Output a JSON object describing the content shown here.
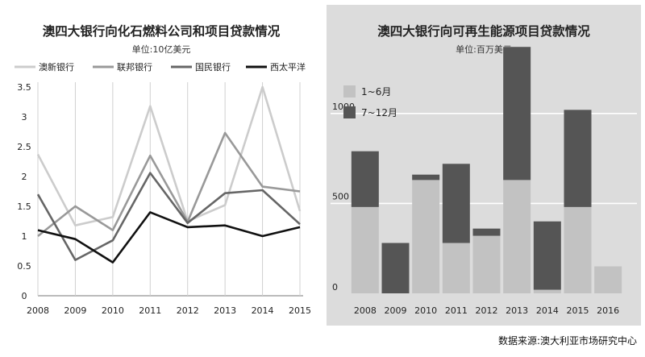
{
  "source_note": "数据来源:澳大利亚市场研究中心",
  "chart_data": [
    {
      "type": "line",
      "title": "澳四大银行向化石燃料公司和项目贷款情况",
      "subtitle": "单位:10亿美元",
      "x": [
        2008,
        2009,
        2010,
        2011,
        2012,
        2013,
        2014,
        2015
      ],
      "ylim": [
        0,
        3.5
      ],
      "yticks": [
        0,
        0.5,
        1,
        1.5,
        2,
        2.5,
        3,
        3.5
      ],
      "grid": false,
      "legend_position": "top",
      "series": [
        {
          "name": "澳新银行",
          "color": "#cccccc",
          "values": [
            2.37,
            1.18,
            1.32,
            3.18,
            1.25,
            1.52,
            3.5,
            1.42
          ]
        },
        {
          "name": "联邦银行",
          "color": "#999999",
          "values": [
            1.0,
            1.5,
            1.1,
            2.35,
            1.24,
            2.73,
            1.83,
            1.75
          ]
        },
        {
          "name": "国民银行",
          "color": "#666666",
          "values": [
            1.7,
            0.6,
            0.93,
            2.06,
            1.22,
            1.72,
            1.77,
            1.2
          ]
        },
        {
          "name": "西太平洋",
          "color": "#111111",
          "values": [
            1.1,
            0.95,
            0.56,
            1.4,
            1.15,
            1.18,
            1.0,
            1.15
          ]
        }
      ]
    },
    {
      "type": "bar",
      "stacked": true,
      "title": "澳四大银行向可再生能源项目贷款情况",
      "subtitle": "单位:百万美元",
      "categories": [
        "2008",
        "2009",
        "2010",
        "2011",
        "2012",
        "2013",
        "2014",
        "2015",
        "2016"
      ],
      "ylim": [
        0,
        1250
      ],
      "yticks": [
        0,
        500,
        1000
      ],
      "grid": true,
      "legend_position": "top-left",
      "series": [
        {
          "name": "1~6月",
          "color": "#c2c2c2",
          "values": [
            480,
            0,
            630,
            280,
            320,
            630,
            20,
            480,
            150
          ]
        },
        {
          "name": "7~12月",
          "color": "#555555",
          "values": [
            310,
            280,
            30,
            440,
            40,
            740,
            380,
            540,
            0
          ]
        }
      ]
    }
  ]
}
